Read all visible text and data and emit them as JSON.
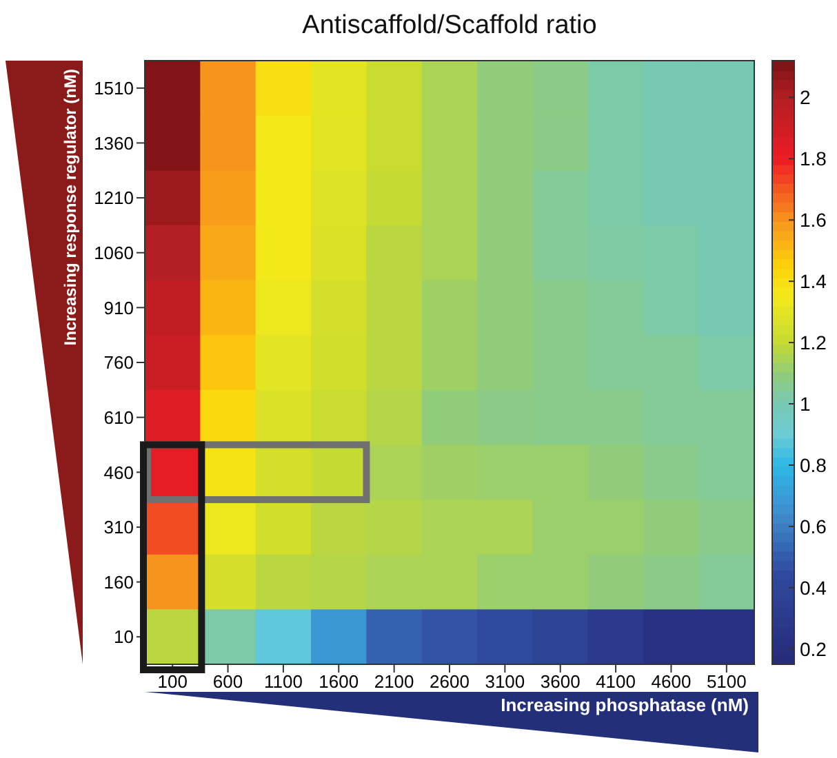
{
  "chart_data": {
    "type": "heatmap",
    "title": "Antiscaffold/Scaffold ratio",
    "xlabel": "Increasing phosphatase (nM)",
    "ylabel": "Increasing response regulator (nM)",
    "categories": [
      "100",
      "600",
      "1100",
      "1600",
      "2100",
      "2600",
      "3100",
      "3600",
      "4100",
      "4600",
      "5100"
    ],
    "y_categories": [
      "1510",
      "1360",
      "1210",
      "1060",
      "910",
      "760",
      "610",
      "460",
      "310",
      "160",
      "10"
    ],
    "cells": [
      [
        2.1,
        1.6,
        1.4,
        1.3,
        1.22,
        1.15,
        1.1,
        1.08,
        1.02,
        1.0,
        1.0
      ],
      [
        2.1,
        1.6,
        1.36,
        1.3,
        1.22,
        1.15,
        1.1,
        1.08,
        1.02,
        1.0,
        1.0
      ],
      [
        2.05,
        1.58,
        1.36,
        1.28,
        1.2,
        1.15,
        1.1,
        1.05,
        1.02,
        1.0,
        1.0
      ],
      [
        2.0,
        1.55,
        1.36,
        1.27,
        1.18,
        1.15,
        1.1,
        1.05,
        1.03,
        1.02,
        1.0
      ],
      [
        1.95,
        1.52,
        1.33,
        1.25,
        1.18,
        1.13,
        1.1,
        1.07,
        1.05,
        1.02,
        1.0
      ],
      [
        1.92,
        1.48,
        1.3,
        1.24,
        1.18,
        1.13,
        1.1,
        1.07,
        1.05,
        1.05,
        1.02
      ],
      [
        1.85,
        1.42,
        1.27,
        1.22,
        1.17,
        1.1,
        1.08,
        1.07,
        1.07,
        1.05,
        1.05
      ],
      [
        1.82,
        1.38,
        1.25,
        1.2,
        1.15,
        1.13,
        1.12,
        1.12,
        1.1,
        1.07,
        1.05
      ],
      [
        1.72,
        1.33,
        1.24,
        1.18,
        1.17,
        1.15,
        1.15,
        1.12,
        1.12,
        1.1,
        1.07
      ],
      [
        1.6,
        1.25,
        1.18,
        1.17,
        1.15,
        1.15,
        1.12,
        1.12,
        1.1,
        1.08,
        1.05
      ],
      [
        1.18,
        1.02,
        0.88,
        0.68,
        0.52,
        0.48,
        0.45,
        0.38,
        0.3,
        0.22,
        0.22
      ]
    ],
    "clim": [
      0.15,
      2.12
    ],
    "cticks": [
      0.2,
      0.4,
      0.6,
      0.8,
      1,
      1.2,
      1.4,
      1.6,
      1.8,
      2
    ]
  }
}
